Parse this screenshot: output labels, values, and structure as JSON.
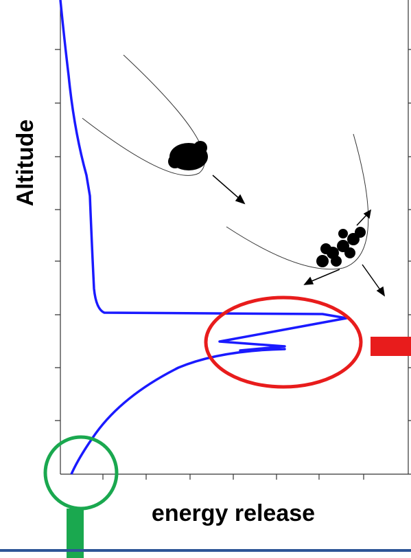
{
  "y_axis_label": "Altitude",
  "x_axis_label": "energy release"
}
